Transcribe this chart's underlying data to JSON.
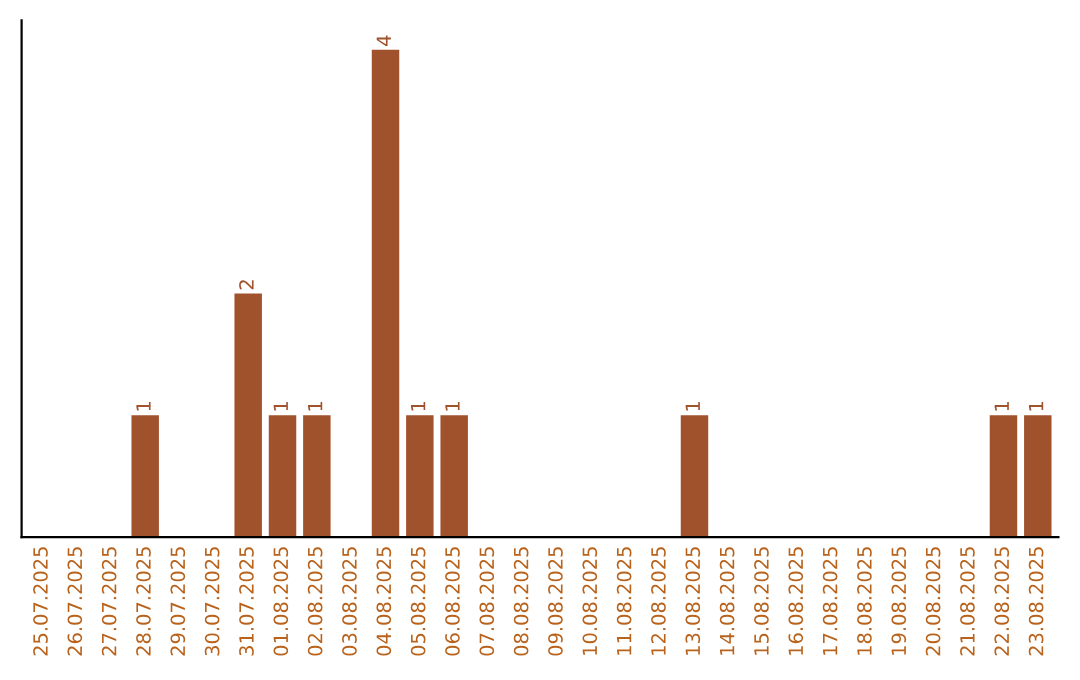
{
  "chart_data": {
    "type": "bar",
    "categories": [
      "25.07.2025",
      "26.07.2025",
      "27.07.2025",
      "28.07.2025",
      "29.07.2025",
      "30.07.2025",
      "31.07.2025",
      "01.08.2025",
      "02.08.2025",
      "03.08.2025",
      "04.08.2025",
      "05.08.2025",
      "06.08.2025",
      "07.08.2025",
      "08.08.2025",
      "09.08.2025",
      "10.08.2025",
      "11.08.2025",
      "12.08.2025",
      "13.08.2025",
      "14.08.2025",
      "15.08.2025",
      "16.08.2025",
      "17.08.2025",
      "18.08.2025",
      "19.08.2025",
      "20.08.2025",
      "21.08.2025",
      "22.08.2025",
      "23.08.2025"
    ],
    "values": [
      0,
      0,
      0,
      1,
      0,
      0,
      2,
      1,
      1,
      0,
      4,
      1,
      1,
      0,
      0,
      0,
      0,
      0,
      0,
      1,
      0,
      0,
      0,
      0,
      0,
      0,
      0,
      0,
      1,
      1
    ],
    "value_labels": [
      null,
      null,
      null,
      "1",
      null,
      null,
      "2",
      "1",
      "1",
      null,
      "4",
      "1",
      "1",
      null,
      null,
      null,
      null,
      null,
      null,
      "1",
      null,
      null,
      null,
      null,
      null,
      null,
      null,
      null,
      "1",
      "1"
    ],
    "color": "#a0522d",
    "tick_labels": "x",
    "grid": false,
    "legend": false
  }
}
